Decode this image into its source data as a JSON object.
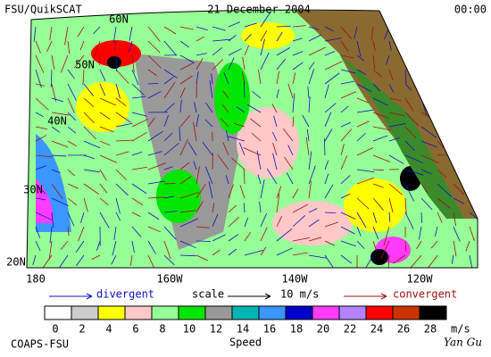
{
  "header": {
    "left": "FSU/QuikSCAT",
    "center": "21 December 2004",
    "right": "00:00"
  },
  "map": {
    "lat_labels": [
      "60N",
      "50N",
      "40N",
      "30N",
      "20N"
    ],
    "lon_labels": [
      "180",
      "160W",
      "140W",
      "120W"
    ]
  },
  "legend": {
    "divergent": "divergent",
    "scale": "scale",
    "scale_value": "10 m/s",
    "convergent": "convergent"
  },
  "colorbar": {
    "ticks": [
      0,
      2,
      4,
      6,
      8,
      10,
      12,
      14,
      16,
      18,
      20,
      22,
      24,
      26,
      28
    ],
    "unit": "m/s",
    "label": "Speed",
    "colors": [
      "#ffffff",
      "#cccccc",
      "#ffff00",
      "#ffc8c8",
      "#96ff96",
      "#00e600",
      "#999999",
      "#00b4b4",
      "#3c96ff",
      "#0000c8",
      "#ff3cff",
      "#b482ff",
      "#ff0000",
      "#cc3300",
      "#000000"
    ]
  },
  "footer": {
    "left": "COAPS-FSU",
    "right": "Yan Gu"
  }
}
